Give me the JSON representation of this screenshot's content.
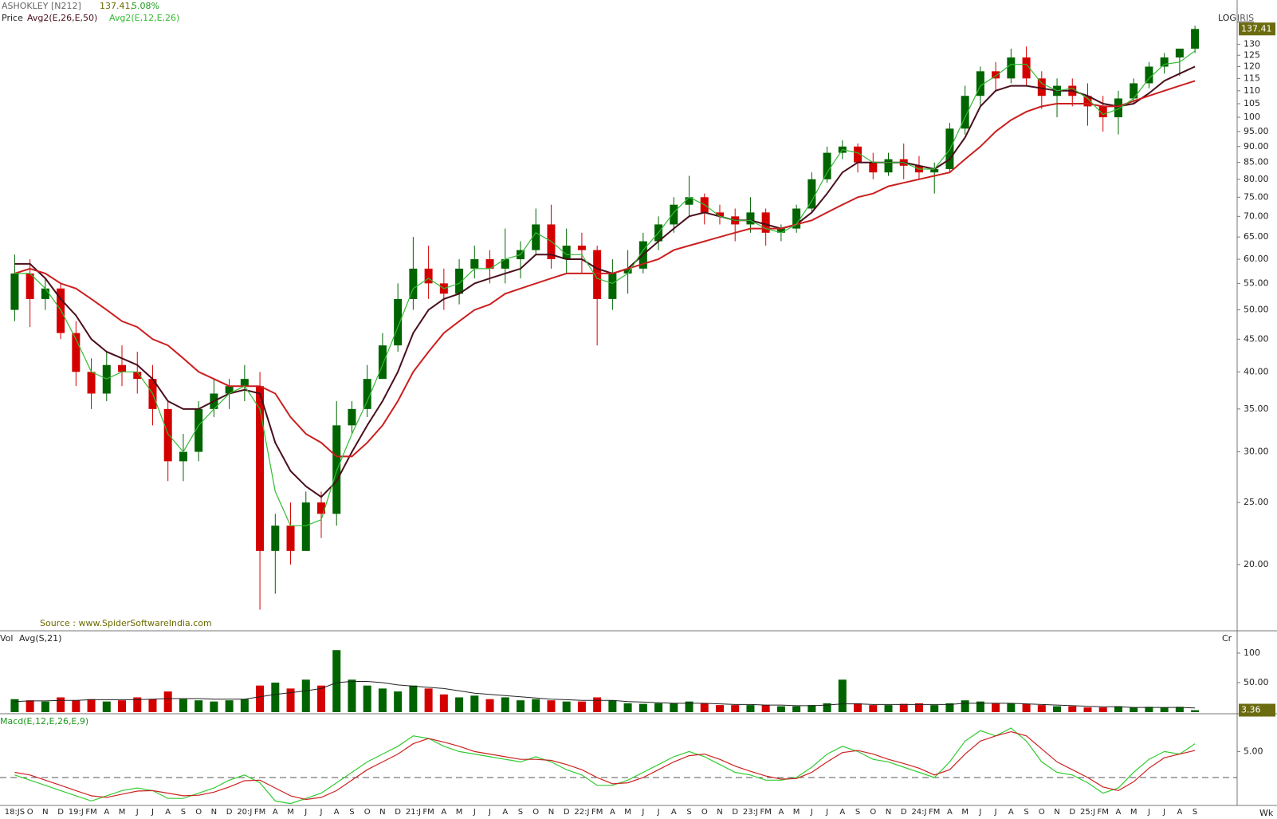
{
  "chart_data": [
    {
      "type": "candlestick",
      "title": "ASHOKLEY [N212]",
      "price_text": "137.41,",
      "change_text": "5.08%",
      "legend_label": "Price",
      "scale_label": "LOG",
      "template_label": "IRIS",
      "source": "Source : www.SpiderSoftwareIndia.com",
      "log": true,
      "up_color": "#006400",
      "down_color": "#d40000",
      "categories": [
        "18:JS",
        "O",
        "N",
        "D",
        "19:J",
        "FM",
        "A",
        "M",
        "J",
        "J",
        "A",
        "S",
        "O",
        "N",
        "D",
        "20:J",
        "FM",
        "A",
        "M",
        "J",
        "J",
        "A",
        "S",
        "O",
        "N",
        "D",
        "21:J",
        "FM",
        "A",
        "M",
        "J",
        "J",
        "A",
        "S",
        "O",
        "N",
        "D",
        "22:J",
        "FM",
        "A",
        "M",
        "J",
        "J",
        "A",
        "S",
        "O",
        "N",
        "D",
        "23:J",
        "FM",
        "A",
        "M",
        "J",
        "J",
        "A",
        "S",
        "O",
        "N",
        "D",
        "24:J",
        "FM",
        "A",
        "M",
        "J",
        "J",
        "A",
        "S",
        "O",
        "N",
        "D",
        "25:J",
        "FM",
        "A",
        "M",
        "J",
        "J",
        "A",
        "S"
      ],
      "open": [
        50,
        57,
        52,
        54,
        46,
        40,
        37,
        41,
        40,
        39,
        35,
        29,
        30,
        35,
        37,
        38,
        38,
        21,
        23,
        21,
        25,
        24,
        33,
        35,
        39,
        44,
        52,
        58,
        55,
        53,
        58,
        60,
        58,
        60,
        62,
        68,
        60,
        63,
        62,
        52,
        57,
        58,
        64,
        68,
        73,
        75,
        71,
        70,
        68,
        71,
        66,
        67,
        72,
        80,
        88,
        90,
        85,
        82,
        86,
        84,
        82,
        83,
        96,
        108,
        118,
        115,
        124,
        115,
        108,
        112,
        108,
        104,
        100,
        107,
        113,
        120,
        124,
        128
      ],
      "high": [
        61,
        60,
        56,
        55,
        48,
        42,
        43,
        44,
        43,
        41,
        36,
        32,
        36,
        39,
        39,
        41,
        40,
        24,
        25,
        26,
        26,
        36,
        36,
        41,
        46,
        55,
        65,
        63,
        58,
        60,
        63,
        62,
        67,
        64,
        72,
        73,
        67,
        66,
        63,
        60,
        62,
        66,
        70,
        75,
        81,
        76,
        73,
        72,
        75,
        72,
        68,
        73,
        82,
        90,
        92,
        91,
        88,
        88,
        91,
        87,
        85,
        98,
        112,
        120,
        122,
        128,
        129,
        118,
        115,
        115,
        113,
        108,
        110,
        115,
        122,
        126,
        128,
        139
      ],
      "low": [
        48,
        47,
        50,
        45,
        38,
        35,
        36,
        38,
        37,
        33,
        27,
        27,
        29,
        34,
        35,
        36,
        17,
        18,
        20,
        21,
        22,
        23,
        32,
        34,
        39,
        43,
        50,
        52,
        50,
        51,
        56,
        55,
        55,
        56,
        61,
        58,
        57,
        57,
        44,
        50,
        53,
        57,
        62,
        66,
        70,
        68,
        68,
        64,
        66,
        63,
        64,
        66,
        71,
        79,
        86,
        82,
        80,
        81,
        80,
        80,
        76,
        82,
        94,
        104,
        110,
        113,
        112,
        103,
        100,
        104,
        97,
        95,
        94,
        105,
        111,
        117,
        116,
        126
      ],
      "close": [
        57,
        52,
        54,
        46,
        40,
        37,
        41,
        40,
        39,
        35,
        29,
        30,
        35,
        37,
        38,
        39,
        21,
        23,
        21,
        25,
        24,
        33,
        35,
        39,
        44,
        52,
        58,
        55,
        53,
        58,
        60,
        58,
        60,
        62,
        68,
        60,
        63,
        62,
        52,
        57,
        58,
        64,
        68,
        73,
        75,
        71,
        70,
        68,
        71,
        66,
        67,
        72,
        80,
        88,
        90,
        85,
        82,
        86,
        84,
        82,
        83,
        96,
        108,
        118,
        115,
        124,
        115,
        108,
        112,
        108,
        104,
        100,
        107,
        113,
        120,
        124,
        128,
        137.41
      ],
      "series": [
        {
          "name": "Avg2(E,26,E,50)",
          "color": "#4a0f1c",
          "values": [
            59,
            59,
            56,
            52,
            49,
            45,
            43,
            42,
            41,
            39,
            36,
            35,
            35,
            36,
            37,
            37.5,
            37,
            31,
            28,
            26.5,
            25.5,
            27,
            30,
            33,
            36,
            40,
            46,
            50,
            52,
            53,
            55,
            56,
            57,
            58,
            61,
            61,
            60,
            60,
            58,
            57,
            58,
            61,
            64,
            67,
            70,
            71,
            70,
            69,
            69,
            68,
            67,
            68,
            71,
            76,
            82,
            85,
            85,
            85,
            85,
            84,
            83,
            86,
            93,
            104,
            110,
            112,
            112,
            111,
            110,
            110,
            108,
            105,
            104,
            105,
            109,
            114,
            117,
            120
          ]
        },
        {
          "color": "#cc1f1f",
          "values": [
            57,
            58,
            57,
            55,
            54,
            52,
            50,
            48,
            47,
            45,
            44,
            42,
            40,
            39,
            38,
            38,
            38,
            37,
            34,
            32,
            31,
            29.5,
            29.5,
            31,
            33,
            36,
            40,
            43,
            46,
            48,
            50,
            51,
            53,
            54,
            55,
            56,
            57,
            57,
            57,
            57,
            58,
            59,
            60,
            62,
            63,
            64,
            65,
            66,
            67,
            67,
            67,
            68,
            69,
            71,
            73,
            75,
            76,
            78,
            79,
            80,
            81,
            82,
            86,
            90,
            95,
            99,
            102,
            104,
            105,
            105,
            105,
            104,
            104,
            106,
            108,
            110,
            112,
            114
          ]
        },
        {
          "name": "Avg2(E,12,E,26)",
          "color": "#33bb33",
          "values": [
            57,
            57,
            54,
            50,
            45,
            40,
            39,
            40,
            40,
            37,
            32,
            30,
            33,
            35,
            37,
            38,
            35,
            26,
            23,
            23,
            23.5,
            28,
            32,
            36,
            41,
            47,
            54,
            56,
            54,
            55,
            58,
            58,
            60,
            61,
            66,
            64,
            61,
            61,
            56,
            55,
            57,
            62,
            66,
            71,
            75,
            73,
            70,
            69,
            69,
            67,
            66,
            68,
            74,
            82,
            89,
            88,
            85,
            85,
            85,
            83,
            83,
            89,
            100,
            112,
            116,
            121,
            121,
            113,
            110,
            111,
            107,
            101,
            103,
            107,
            115,
            121,
            122,
            127
          ]
        }
      ],
      "ylim": [
        15.8,
        152.5
      ],
      "yticks": [
        {
          "value": 20,
          "label": "20.00"
        },
        {
          "value": 25,
          "label": "25.00"
        },
        {
          "value": 30,
          "label": "30.00"
        },
        {
          "value": 35,
          "label": "35.00"
        },
        {
          "value": 40,
          "label": "40.00"
        },
        {
          "value": 45,
          "label": "45.00"
        },
        {
          "value": 50,
          "label": "50.00"
        },
        {
          "value": 55,
          "label": "55.00"
        },
        {
          "value": 60,
          "label": "60.00"
        },
        {
          "value": 65,
          "label": "65.00"
        },
        {
          "value": 70,
          "label": "70.00"
        },
        {
          "value": 75,
          "label": "75.00"
        },
        {
          "value": 80,
          "label": "80.00"
        },
        {
          "value": 85,
          "label": "85.00"
        },
        {
          "value": 90,
          "label": "90.00"
        },
        {
          "value": 95,
          "label": "95.00"
        },
        100,
        105,
        110,
        115,
        120,
        125,
        130
      ]
    },
    {
      "type": "bar",
      "title": "Vol",
      "unit_label": "Cr",
      "values": [
        22,
        20,
        18,
        25,
        20,
        22,
        18,
        20,
        25,
        22,
        35,
        22,
        20,
        18,
        20,
        22,
        45,
        50,
        40,
        55,
        45,
        105,
        55,
        45,
        40,
        35,
        45,
        40,
        30,
        25,
        28,
        22,
        25,
        20,
        22,
        20,
        18,
        18,
        25,
        20,
        15,
        14,
        15,
        15,
        18,
        15,
        12,
        12,
        12,
        12,
        10,
        10,
        12,
        15,
        55,
        15,
        12,
        12,
        14,
        15,
        12,
        15,
        20,
        18,
        15,
        15,
        14,
        12,
        10,
        10,
        8,
        8,
        10,
        8,
        9,
        8,
        9,
        3.36
      ],
      "series": [
        {
          "name": "Avg(S,21)",
          "color": "#222222",
          "values": [
            18,
            19,
            19,
            20,
            20,
            21,
            21,
            21,
            21,
            22,
            23,
            23,
            23,
            22,
            22,
            22,
            26,
            30,
            33,
            36,
            40,
            50,
            52,
            52,
            50,
            46,
            44,
            42,
            40,
            36,
            32,
            30,
            28,
            26,
            24,
            22,
            21,
            20,
            20,
            20,
            18,
            17,
            16,
            15,
            15,
            15,
            14,
            13,
            13,
            12,
            12,
            11,
            11,
            12,
            14,
            14,
            13,
            13,
            13,
            13,
            13,
            13,
            15,
            15,
            15,
            15,
            14,
            13,
            12,
            11,
            10,
            9,
            9,
            8,
            8,
            8,
            8,
            7
          ]
        }
      ],
      "ylim": [
        0,
        135
      ],
      "yticks": [
        100,
        {
          "value": 50,
          "label": "50.00"
        }
      ]
    },
    {
      "type": "line",
      "title": "Macd(E,12,E,26,E,9)",
      "x_label": "Wk",
      "hline": 0,
      "series": [
        {
          "color": "#33cc33",
          "values": [
            0.5,
            -0.5,
            -1.5,
            -2.5,
            -3.5,
            -4.5,
            -3.5,
            -2.5,
            -2,
            -2.5,
            -4,
            -4,
            -3,
            -2,
            -0.5,
            0.5,
            -1,
            -4.5,
            -5,
            -4,
            -3,
            -1,
            1,
            3,
            4.5,
            6,
            8,
            7.5,
            6,
            5,
            4.5,
            4,
            3.5,
            3,
            4,
            3,
            1.5,
            0.5,
            -1.5,
            -1.5,
            -0.5,
            1,
            2.5,
            4,
            5,
            4,
            2.5,
            1,
            0.5,
            -0.5,
            -0.5,
            0,
            2,
            4.5,
            6,
            5,
            3.5,
            3,
            2,
            1,
            0,
            3,
            7,
            9,
            8,
            9.5,
            7,
            3,
            1,
            0.5,
            -1,
            -3,
            -2,
            1,
            3.5,
            5,
            4.5,
            6.5
          ]
        },
        {
          "color": "#cc2222",
          "values": [
            1,
            0.5,
            -0.5,
            -1.5,
            -2.5,
            -3.5,
            -3.8,
            -3.2,
            -2.6,
            -2.5,
            -3,
            -3.5,
            -3.4,
            -2.8,
            -1.8,
            -0.6,
            -0.5,
            -2,
            -3.5,
            -4.2,
            -3.8,
            -2.5,
            -0.5,
            1.5,
            3,
            4.5,
            6.5,
            7.5,
            6.8,
            6,
            5,
            4.5,
            4,
            3.5,
            3.5,
            3.3,
            2.5,
            1.5,
            0,
            -1.2,
            -1,
            0,
            1.5,
            3,
            4.2,
            4.5,
            3.5,
            2.2,
            1.2,
            0.3,
            -0.3,
            -0.2,
            1,
            3,
            4.8,
            5.2,
            4.5,
            3.5,
            2.7,
            1.8,
            0.5,
            1.5,
            4.5,
            7,
            8,
            8.8,
            8,
            5.5,
            3,
            1.5,
            0,
            -1.8,
            -2.5,
            -0.8,
            1.8,
            3.8,
            4.5,
            5.2
          ]
        }
      ],
      "ylim": [
        -5.2,
        12.1
      ],
      "yticks": [
        {
          "value": 5,
          "label": "5.00"
        }
      ]
    }
  ]
}
